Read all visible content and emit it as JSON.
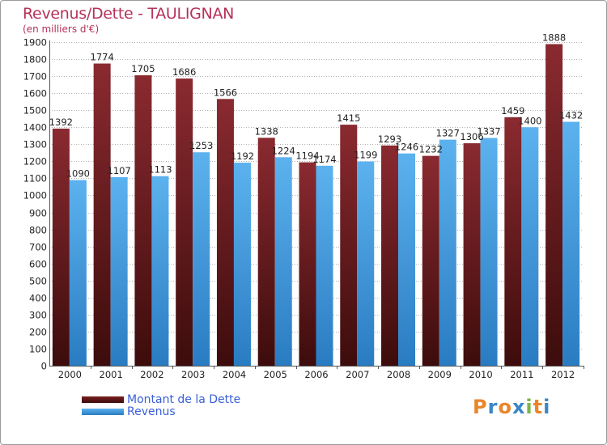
{
  "header": {
    "title": "Revenus/Dette - TAULIGNAN",
    "subtitle": "(en milliers d'€)"
  },
  "colors": {
    "dette_top": "#8a2a30",
    "dette_bottom": "#3d0c0c",
    "revenus_top": "#5cb2ee",
    "revenus_bottom": "#2a7cc2",
    "gridline": "#b0b0b0",
    "axis": "#555555"
  },
  "chart_data": {
    "type": "bar",
    "title": "Revenus/Dette - TAULIGNAN",
    "subtitle": "(en milliers d'€)",
    "xlabel": "",
    "ylabel": "",
    "ylim": [
      0,
      1900
    ],
    "ytick_step": 100,
    "grid": true,
    "legend_position": "bottom-left",
    "categories": [
      "2000",
      "2001",
      "2002",
      "2003",
      "2004",
      "2005",
      "2006",
      "2007",
      "2008",
      "2009",
      "2010",
      "2011",
      "2012"
    ],
    "series": [
      {
        "name": "Montant de la Dette",
        "values": [
          1392,
          1774,
          1705,
          1686,
          1566,
          1338,
          1194,
          1415,
          1293,
          1232,
          1306,
          1459,
          1888
        ]
      },
      {
        "name": "Revenus",
        "values": [
          1090,
          1107,
          1113,
          1253,
          1192,
          1224,
          1174,
          1199,
          1246,
          1327,
          1337,
          1400,
          1432
        ]
      }
    ]
  },
  "legend": {
    "items": [
      {
        "label": "Montant de la Dette"
      },
      {
        "label": "Revenus"
      }
    ]
  },
  "brand": {
    "letters": [
      {
        "char": "P",
        "color": "#e8862a"
      },
      {
        "char": "r",
        "color": "#3a86c8"
      },
      {
        "char": "o",
        "color": "#e8862a"
      },
      {
        "char": "x",
        "color": "#3a86c8"
      },
      {
        "char": "i",
        "color": "#7ab648"
      },
      {
        "char": "t",
        "color": "#e8862a"
      },
      {
        "char": "i",
        "color": "#3a86c8"
      }
    ]
  }
}
